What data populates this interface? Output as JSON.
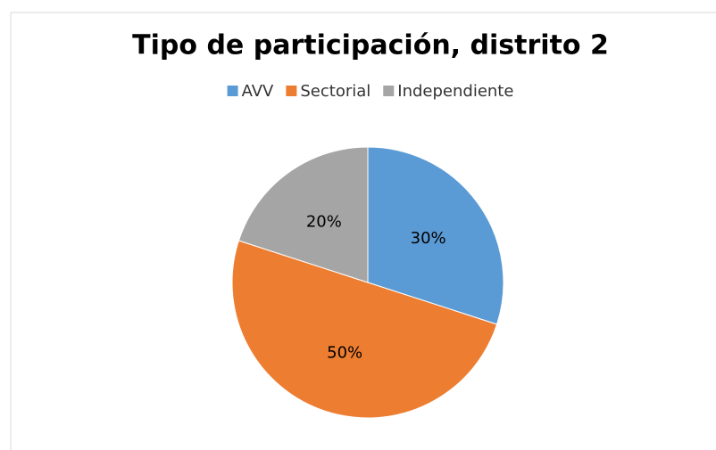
{
  "chart_data": {
    "type": "pie",
    "title": "Tipo de participación, distrito 2",
    "categories": [
      "AVV",
      "Sectorial",
      "Independiente"
    ],
    "values": [
      30,
      50,
      20
    ],
    "value_labels": [
      "30%",
      "50%",
      "20%"
    ],
    "colors": [
      "#5b9bd5",
      "#ed7d31",
      "#a5a5a5"
    ],
    "legend": "top"
  }
}
